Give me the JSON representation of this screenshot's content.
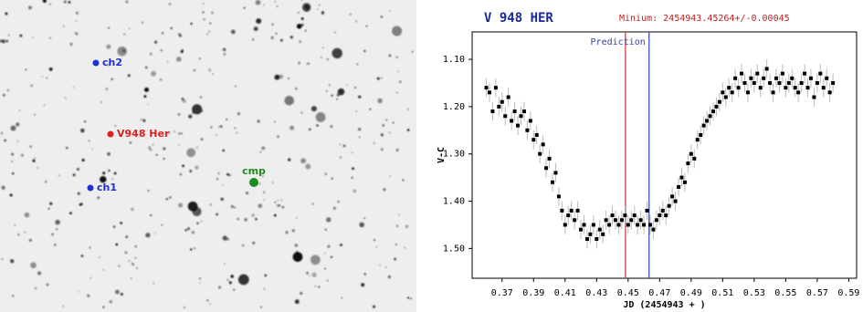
{
  "image": {
    "labels": [
      {
        "text": "ch2",
        "color": "#1f2fd6"
      },
      {
        "text": "V948 Her",
        "color": "#e02020"
      },
      {
        "text": "ch1",
        "color": "#1f2fd6"
      },
      {
        "text": "cmp",
        "color": "#1f8a1f"
      }
    ]
  },
  "chart_data": {
    "type": "scatter",
    "title": "V 948 HER",
    "subtitle": "Minium: 2454943.45264+/-0.00045",
    "x_label": "JD (2454943 + )",
    "y_label": "V-C",
    "xlim": [
      0.351,
      0.595
    ],
    "ylim": [
      1.563,
      1.042
    ],
    "xticks": [
      0.37,
      0.39,
      0.41,
      0.43,
      0.45,
      0.47,
      0.49,
      0.51,
      0.53,
      0.55,
      0.57,
      0.59
    ],
    "yticks": [
      {
        "value": 1.1,
        "label": "1.10"
      },
      {
        "value": 1.2,
        "label": "1.20"
      },
      {
        "value": 1.3,
        "label": "1.30"
      },
      {
        "value": 1.4,
        "label": "1.40"
      },
      {
        "value": 1.5,
        "label": "1.50"
      }
    ],
    "error": 0.02,
    "vlines": [
      {
        "x": 0.4483,
        "color": "#c83030"
      },
      {
        "x": 0.4633,
        "color": "#3040b0",
        "label": "Prediction"
      }
    ],
    "series": [
      {
        "color": "#000000",
        "x": [
          0.36,
          0.362,
          0.364,
          0.366,
          0.368,
          0.37,
          0.372,
          0.374,
          0.376,
          0.378,
          0.38,
          0.382,
          0.384,
          0.386,
          0.388,
          0.39,
          0.392,
          0.394,
          0.396,
          0.398,
          0.4,
          0.402,
          0.404,
          0.406,
          0.408,
          0.41,
          0.412,
          0.414,
          0.416,
          0.418,
          0.42,
          0.422,
          0.424,
          0.426,
          0.428,
          0.43,
          0.432,
          0.434,
          0.436,
          0.438,
          0.44,
          0.442,
          0.444,
          0.446,
          0.448,
          0.45,
          0.452,
          0.454,
          0.456,
          0.458,
          0.46,
          0.462,
          0.464,
          0.466,
          0.468,
          0.47,
          0.472,
          0.474,
          0.476,
          0.478,
          0.48,
          0.482,
          0.484,
          0.486,
          0.488,
          0.49,
          0.492,
          0.494,
          0.496,
          0.498,
          0.5,
          0.502,
          0.504,
          0.506,
          0.508,
          0.51,
          0.512,
          0.514,
          0.516,
          0.518,
          0.52,
          0.522,
          0.524,
          0.526,
          0.528,
          0.53,
          0.532,
          0.534,
          0.536,
          0.538,
          0.54,
          0.542,
          0.544,
          0.546,
          0.548,
          0.55,
          0.552,
          0.554,
          0.556,
          0.558,
          0.56,
          0.562,
          0.564,
          0.566,
          0.568,
          0.57,
          0.572,
          0.574,
          0.576,
          0.578,
          0.58
        ],
        "y": [
          1.16,
          1.17,
          1.21,
          1.16,
          1.2,
          1.19,
          1.22,
          1.18,
          1.23,
          1.21,
          1.24,
          1.22,
          1.21,
          1.25,
          1.23,
          1.27,
          1.26,
          1.3,
          1.28,
          1.33,
          1.31,
          1.36,
          1.34,
          1.39,
          1.42,
          1.45,
          1.43,
          1.42,
          1.44,
          1.42,
          1.46,
          1.45,
          1.48,
          1.47,
          1.45,
          1.48,
          1.46,
          1.47,
          1.44,
          1.45,
          1.43,
          1.44,
          1.45,
          1.44,
          1.43,
          1.45,
          1.44,
          1.43,
          1.45,
          1.44,
          1.45,
          1.42,
          1.45,
          1.46,
          1.44,
          1.43,
          1.42,
          1.43,
          1.41,
          1.39,
          1.4,
          1.37,
          1.35,
          1.36,
          1.32,
          1.3,
          1.31,
          1.27,
          1.26,
          1.24,
          1.23,
          1.22,
          1.21,
          1.2,
          1.19,
          1.17,
          1.18,
          1.16,
          1.17,
          1.14,
          1.16,
          1.13,
          1.15,
          1.17,
          1.14,
          1.15,
          1.13,
          1.16,
          1.14,
          1.12,
          1.15,
          1.17,
          1.14,
          1.15,
          1.13,
          1.16,
          1.15,
          1.14,
          1.16,
          1.17,
          1.15,
          1.13,
          1.16,
          1.14,
          1.18,
          1.15,
          1.13,
          1.16,
          1.14,
          1.17,
          1.15
        ]
      }
    ]
  }
}
